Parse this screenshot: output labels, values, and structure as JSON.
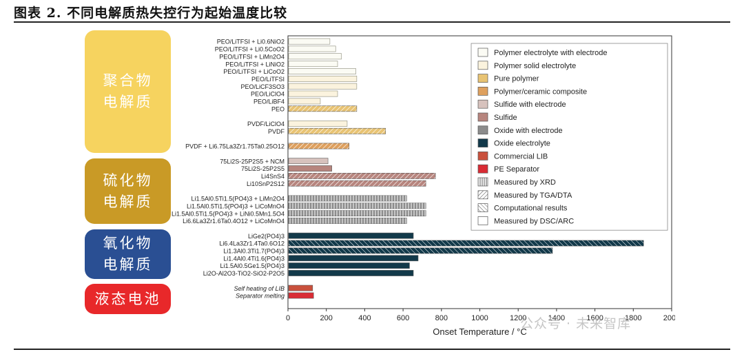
{
  "header": {
    "title": "图表 2. 不同电解质热失控行为起始温度比较"
  },
  "groups": [
    {
      "line1": "聚合物",
      "line2": "电解质",
      "color": "#f6d35f"
    },
    {
      "line1": "硫化物",
      "line2": "电解质",
      "color": "#c99a26"
    },
    {
      "line1": "氧化物",
      "line2": "电解质",
      "color": "#2a4f93"
    },
    {
      "line1": "液态电池",
      "color": "#e8282a"
    }
  ],
  "watermark": "公众号 · 未来智库",
  "chart_data": {
    "type": "bar",
    "orientation": "horizontal",
    "xlabel": "Onset Temperature / °C",
    "xlim": [
      0,
      2000
    ],
    "xticks": [
      0,
      200,
      400,
      600,
      800,
      1000,
      1200,
      1400,
      1600,
      1800,
      2000
    ],
    "bars": [
      {
        "label": "PEO/LiTFSI + Li0.6NiO2",
        "value": 215,
        "style": "polymer-electrode",
        "method": "dsc"
      },
      {
        "label": "PEO/LiTFSI + Li0.5CoO2",
        "value": 245,
        "style": "polymer-electrode",
        "method": "dsc"
      },
      {
        "label": "PEO/LiTFSI + LiMn2O4",
        "value": 275,
        "style": "polymer-electrode",
        "method": "dsc"
      },
      {
        "label": "PEO/LiTFSI + LiNiO2",
        "value": 255,
        "style": "polymer-electrode",
        "method": "dsc"
      },
      {
        "label": "PEO/LiTFSI + LiCoO2",
        "value": 350,
        "style": "polymer-electrode",
        "method": "dsc"
      },
      {
        "label": "PEO/LiTFSI",
        "value": 355,
        "style": "polymer-solid",
        "method": "dsc"
      },
      {
        "label": "PEO/LiCF3SO3",
        "value": 355,
        "style": "polymer-solid",
        "method": "dsc"
      },
      {
        "label": "PEO/LiClO4",
        "value": 255,
        "style": "polymer-solid",
        "method": "dsc"
      },
      {
        "label": "PEO/LiBF4",
        "value": 165,
        "style": "polymer-solid",
        "method": "dsc"
      },
      {
        "label": "PEO",
        "value": 355,
        "style": "pure-polymer",
        "method": "tga"
      },
      {
        "label": "",
        "value": null
      },
      {
        "label": "PVDF/LiClO4",
        "value": 305,
        "style": "polymer-solid",
        "method": "dsc"
      },
      {
        "label": "PVDF",
        "value": 505,
        "style": "pure-polymer",
        "method": "tga"
      },
      {
        "label": "",
        "value": null
      },
      {
        "label": "PVDF + Li6.75La3Zr1.75Ta0.25O12",
        "value": 315,
        "style": "polymer-ceramic",
        "method": "tga"
      },
      {
        "label": "",
        "value": null
      },
      {
        "label": "75Li2S-25P2S5 + NCM",
        "value": 205,
        "style": "sulfide-electrode",
        "method": "dsc"
      },
      {
        "label": "75Li2S-25P2S5",
        "value": 225,
        "style": "sulfide",
        "method": "dsc"
      },
      {
        "label": "Li4SnS4",
        "value": 765,
        "style": "sulfide",
        "method": "tga"
      },
      {
        "label": "Li10SnP2S12",
        "value": 715,
        "style": "sulfide",
        "method": "tga"
      },
      {
        "label": "",
        "value": null
      },
      {
        "label": "Li1.5Al0.5Ti1.5(PO4)3 + LiMn2O4",
        "value": 615,
        "style": "oxide-electrode",
        "method": "xrd"
      },
      {
        "label": "Li1.5Al0.5Ti1.5(PO4)3 + LiCoMnO4",
        "value": 715,
        "style": "oxide-electrode",
        "method": "xrd"
      },
      {
        "label": "Li1.5Al0.5Ti1.5(PO4)3 + LiNi0.5Mn1.5O4",
        "value": 715,
        "style": "oxide-electrode",
        "method": "xrd"
      },
      {
        "label": "Li6.6La3Zr1.6Ta0.4O12 + LiCoMnO4",
        "value": 615,
        "style": "oxide-electrode",
        "method": "xrd"
      },
      {
        "label": "",
        "value": null
      },
      {
        "label": "LiGe2(PO4)3",
        "value": 650,
        "style": "oxide",
        "method": "dsc"
      },
      {
        "label": "Li6.4La3Zr1.4Ta0.6O12",
        "value": 1850,
        "style": "oxide",
        "method": "comp"
      },
      {
        "label": "Li1.3Al0.3Ti1.7(PO4)3",
        "value": 1375,
        "style": "oxide",
        "method": "comp"
      },
      {
        "label": "Li1.4Al0.4Ti1.6(PO4)3",
        "value": 675,
        "style": "oxide",
        "method": "dsc"
      },
      {
        "label": "Li1.5Al0.5Ge1.5(PO4)3",
        "value": 630,
        "style": "oxide",
        "method": "dsc"
      },
      {
        "label": "Li2O-Al2O3-TiO2-SiO2-P2O5",
        "value": 650,
        "style": "oxide",
        "method": "dsc"
      },
      {
        "label": "",
        "value": null
      },
      {
        "label": "Self heating of LIB",
        "value": 125,
        "style": "commercial-lib",
        "method": "dsc",
        "italic": true
      },
      {
        "label": "Separator melting",
        "value": 130,
        "style": "pe-separator",
        "method": "dsc",
        "italic": true
      }
    ],
    "legend": [
      {
        "name": "Polymer electrolyte with electrode",
        "style": "polymer-electrode"
      },
      {
        "name": "Polymer solid electrolyte",
        "style": "polymer-solid"
      },
      {
        "name": "Pure polymer",
        "style": "pure-polymer"
      },
      {
        "name": "Polymer/ceramic composite",
        "style": "polymer-ceramic"
      },
      {
        "name": "Sulfide with electrode",
        "style": "sulfide-electrode"
      },
      {
        "name": "Sulfide",
        "style": "sulfide"
      },
      {
        "name": "Oxide with electrode",
        "style": "oxide-electrode"
      },
      {
        "name": "Oxide electrolyte",
        "style": "oxide"
      },
      {
        "name": "Commercial LIB",
        "style": "commercial-lib"
      },
      {
        "name": "PE Separator",
        "style": "pe-separator"
      },
      {
        "name": "Measured by XRD",
        "style": "xrd"
      },
      {
        "name": "Measured by TGA/DTA",
        "style": "tga"
      },
      {
        "name": "Computational results",
        "style": "comp"
      },
      {
        "name": "Measured by DSC/ARC",
        "style": "dsc"
      }
    ],
    "legend_position": "top-right",
    "grid": false,
    "colors": {
      "polymer-electrode": "#fbfbf4",
      "polymer-solid": "#fbf3de",
      "pure-polymer": "#e8c373",
      "polymer-ceramic": "#dea05e",
      "sulfide-electrode": "#d7c2bd",
      "sulfide": "#b7857e",
      "oxide-electrode": "#8c8c8c",
      "oxide": "#12394a",
      "commercial-lib": "#c9503c",
      "pe-separator": "#d92b34",
      "xrd": "#ffffff",
      "tga": "#ffffff",
      "comp": "#ffffff",
      "dsc": "#ffffff"
    }
  }
}
